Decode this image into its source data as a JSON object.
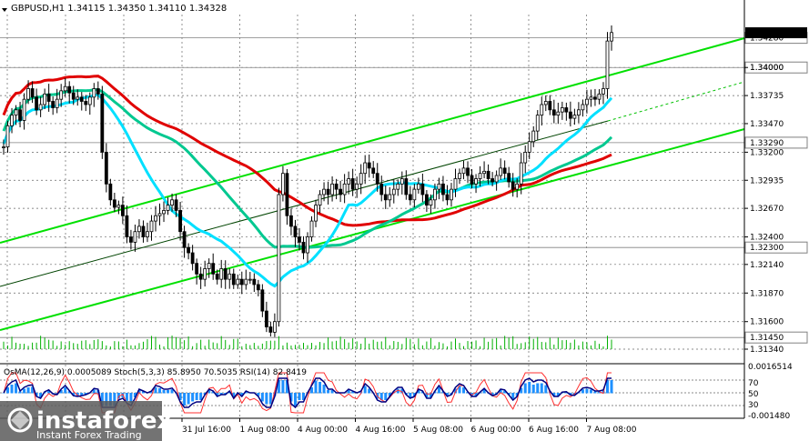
{
  "chart_data": {
    "type": "candlestick",
    "symbol_header": "GBPUSD,H1  1.34115 1.34350 1.34110 1.34328",
    "current_price_label": "1.34328",
    "ylim": [
      1.3134,
      1.345
    ],
    "y_ticks": [
      "1.34000",
      "1.33735",
      "1.33470",
      "1.33200",
      "1.32935",
      "1.32670",
      "1.32400",
      "1.32140",
      "1.31870",
      "1.31600",
      "1.31340"
    ],
    "price_levels": [
      {
        "value": 1.3428,
        "label": "1.34280"
      },
      {
        "value": 1.34,
        "label": "1.34000"
      },
      {
        "value": 1.3329,
        "label": "1.33290"
      },
      {
        "value": 1.323,
        "label": "1.32300"
      },
      {
        "value": 1.3145,
        "label": "1.31450"
      }
    ],
    "x_labels": [
      "31 Jul 16:00",
      "1 Aug 08:00",
      "4 Aug 00:00",
      "4 Aug 16:00",
      "5 Aug 08:00",
      "6 Aug 00:00",
      "6 Aug 16:00",
      "7 Aug 08:00"
    ],
    "x_label_bars": [
      64,
      80,
      96,
      112,
      128,
      144,
      160,
      176
    ],
    "total_bars": 210,
    "closes": [
      1.3325,
      1.3345,
      1.3355,
      1.336,
      1.335,
      1.337,
      1.338,
      1.3372,
      1.336,
      1.3365,
      1.3375,
      1.3368,
      1.3362,
      1.337,
      1.3378,
      1.3382,
      1.3376,
      1.337,
      1.3372,
      1.3368,
      1.3365,
      1.3372,
      1.338,
      1.3375,
      1.332,
      1.329,
      1.3275,
      1.3268,
      1.327,
      1.326,
      1.324,
      1.3235,
      1.3245,
      1.325,
      1.324,
      1.3245,
      1.3255,
      1.326,
      1.3262,
      1.3265,
      1.327,
      1.3275,
      1.3265,
      1.3245,
      1.323,
      1.3225,
      1.3215,
      1.3205,
      1.32,
      1.321,
      1.3215,
      1.3205,
      1.32,
      1.321,
      1.32,
      1.3205,
      1.3195,
      1.32,
      1.3195,
      1.32,
      1.32,
      1.3195,
      1.319,
      1.317,
      1.3155,
      1.315,
      1.316,
      1.328,
      1.33,
      1.326,
      1.325,
      1.324,
      1.3235,
      1.3225,
      1.324,
      1.3255,
      1.327,
      1.328,
      1.3285,
      1.328,
      1.329,
      1.3285,
      1.328,
      1.329,
      1.3295,
      1.3285,
      1.329,
      1.33,
      1.331,
      1.3305,
      1.33,
      1.329,
      1.328,
      1.3275,
      1.328,
      1.3285,
      1.329,
      1.3295,
      1.328,
      1.3275,
      1.3285,
      1.329,
      1.328,
      1.327,
      1.3275,
      1.3285,
      1.329,
      1.328,
      1.3275,
      1.3285,
      1.3295,
      1.33,
      1.3305,
      1.3298,
      1.329,
      1.3295,
      1.33,
      1.3302,
      1.3295,
      1.3292,
      1.3298,
      1.3305,
      1.33,
      1.3292,
      1.3285,
      1.329,
      1.331,
      1.332,
      1.333,
      1.334,
      1.3355,
      1.3365,
      1.3368,
      1.336,
      1.3355,
      1.3358,
      1.3362,
      1.3358,
      1.3352,
      1.3355,
      1.336,
      1.3365,
      1.337,
      1.3372,
      1.337,
      1.3375,
      1.338,
      1.3425,
      1.3433
    ],
    "volume_max_bar": 150,
    "indicator_header": "OsMA(12,26,9) 0.0005089  Stoch(5,3,3) 85.8950 70.5035  RSI(14) 82.8419",
    "indicator_y_labels": [
      "0.0016514",
      "70",
      "50",
      "30",
      "-0.001480"
    ],
    "indicator_levels_text": [
      "70",
      "50",
      "30"
    ],
    "moving_averages": [
      {
        "color": "#e00000",
        "note": "red moving average"
      },
      {
        "color": "#00c890",
        "note": "teal moving average"
      },
      {
        "color": "#00e0ff",
        "note": "cyan moving average"
      }
    ],
    "logo": {
      "brand": "instaforex",
      "tagline": "Instant Forex Trading"
    },
    "grid": true
  }
}
